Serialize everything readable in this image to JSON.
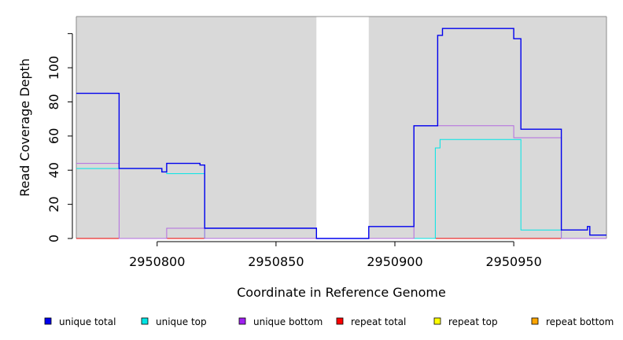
{
  "chart_data": {
    "type": "line",
    "title": "",
    "xlabel": "Coordinate in Reference Genome",
    "ylabel": "Read Coverage Depth",
    "xlim": [
      2950766,
      2950989
    ],
    "ylim": [
      0,
      130
    ],
    "x_ticks": [
      2950800,
      2950850,
      2950900,
      2950950
    ],
    "y_ticks": [
      0,
      20,
      40,
      60,
      80,
      100
    ],
    "grid": false,
    "background": "#d9d9d9",
    "gap_region": [
      2950867,
      2950889
    ],
    "legend_position": "bottom",
    "series": [
      {
        "name": "unique total",
        "color": "#0000ee",
        "steps": [
          [
            2950766,
            85
          ],
          [
            2950784,
            41
          ],
          [
            2950802,
            39
          ],
          [
            2950804,
            44
          ],
          [
            2950818,
            43
          ],
          [
            2950820,
            6
          ],
          [
            2950867,
            0
          ],
          [
            2950889,
            7
          ],
          [
            2950908,
            66
          ],
          [
            2950918,
            119
          ],
          [
            2950920,
            123
          ],
          [
            2950950,
            117
          ],
          [
            2950953,
            64
          ],
          [
            2950970,
            5
          ],
          [
            2950981,
            7
          ],
          [
            2950982,
            2
          ],
          [
            2950989,
            2
          ]
        ]
      },
      {
        "name": "unique top",
        "color": "#00e5e5",
        "steps": [
          [
            2950766,
            41
          ],
          [
            2950784,
            41
          ],
          [
            2950802,
            39
          ],
          [
            2950804,
            38
          ],
          [
            2950820,
            0
          ],
          [
            2950917,
            53
          ],
          [
            2950919,
            58
          ],
          [
            2950953,
            5
          ],
          [
            2950970,
            0
          ],
          [
            2950989,
            0
          ]
        ]
      },
      {
        "name": "unique bottom",
        "color": "#b36be0",
        "steps": [
          [
            2950766,
            44
          ],
          [
            2950784,
            0
          ],
          [
            2950804,
            6
          ],
          [
            2950820,
            0
          ],
          [
            2950908,
            66
          ],
          [
            2950950,
            59
          ],
          [
            2950970,
            0
          ],
          [
            2950989,
            0
          ]
        ]
      },
      {
        "name": "repeat total",
        "color": "#ee0000",
        "steps": [
          [
            2950766,
            0
          ],
          [
            2950989,
            0
          ]
        ]
      },
      {
        "name": "repeat top",
        "color": "#ffff00",
        "steps": [
          [
            2950766,
            0
          ],
          [
            2950989,
            0
          ]
        ]
      },
      {
        "name": "repeat bottom",
        "color": "#ffa500",
        "steps": [
          [
            2950766,
            0
          ],
          [
            2950989,
            0
          ]
        ]
      }
    ]
  },
  "axis": {
    "xlabel": "Coordinate in Reference Genome",
    "ylabel": "Read Coverage Depth"
  },
  "legend": [
    {
      "label": "unique total",
      "color": "#0000ee"
    },
    {
      "label": "unique top",
      "color": "#00e5e5"
    },
    {
      "label": "unique bottom",
      "color": "#a020f0"
    },
    {
      "label": "repeat total",
      "color": "#ff0000"
    },
    {
      "label": "repeat top",
      "color": "#ffff00"
    },
    {
      "label": "repeat bottom",
      "color": "#ffa500"
    }
  ]
}
